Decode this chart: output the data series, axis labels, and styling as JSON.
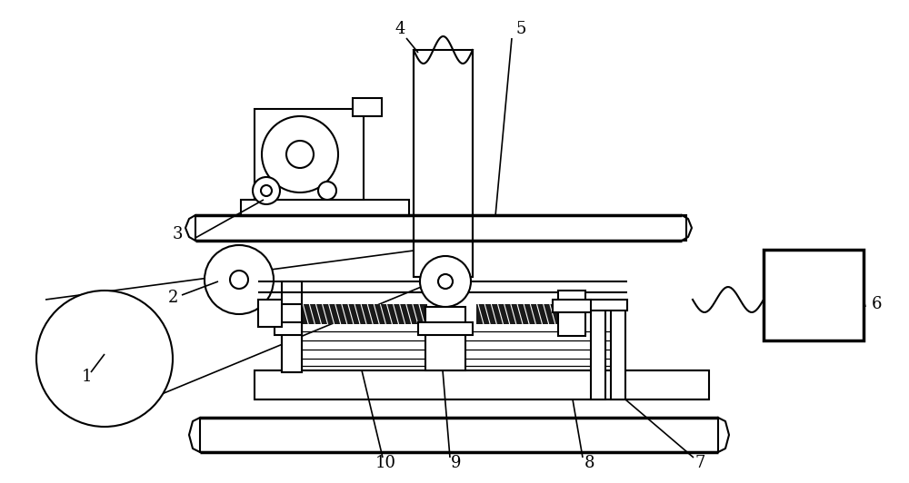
{
  "bg_color": "#ffffff",
  "line_color": "#000000",
  "lw": 1.5,
  "tlw": 2.5,
  "figsize": [
    10.0,
    5.32
  ],
  "dpi": 100,
  "label_fontsize": 13
}
